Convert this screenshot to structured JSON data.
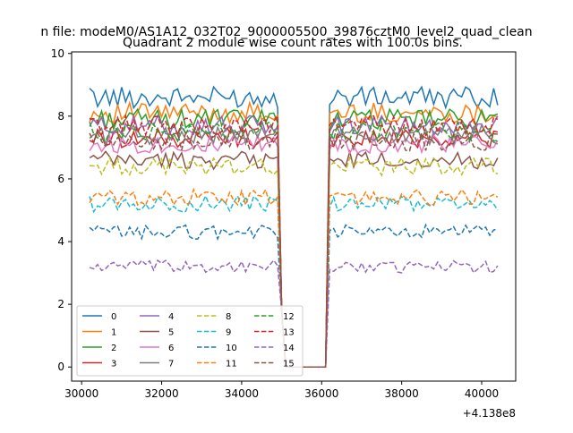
{
  "chart_data": {
    "type": "line",
    "suptitle": "n file: modeM0/AS1A12_032T02_9000005500_39876cztM0_level2_quad_clean",
    "title": "Quadrant 2 module wise count rates with 100.0s bins.",
    "xlabel": "",
    "ylabel": "",
    "offset_label": "+4.138e8",
    "xlim": [
      29750,
      40850
    ],
    "ylim": [
      -0.45,
      10.05
    ],
    "x_ticks": [
      30000,
      32000,
      34000,
      36000,
      38000,
      40000
    ],
    "x_tick_labels": [
      "30000",
      "32000",
      "34000",
      "36000",
      "38000",
      "40000"
    ],
    "y_ticks": [
      0,
      2,
      4,
      6,
      8,
      10
    ],
    "y_tick_labels": [
      "0",
      "2",
      "4",
      "6",
      "8",
      "10"
    ],
    "legend_position": "lower-left",
    "x_start": 30200,
    "x_step": 100,
    "segments": [
      {
        "from": 30200,
        "to": 34900,
        "phase": "high"
      },
      {
        "from": 35000,
        "to": 35000,
        "value": 1.8
      },
      {
        "from": 35100,
        "to": 36100,
        "value": 0
      },
      {
        "from": 36200,
        "to": 40400,
        "phase": "high"
      }
    ],
    "series": [
      {
        "name": "0",
        "color": "#1f77b4",
        "dash": "solid",
        "level": 8.6
      },
      {
        "name": "1",
        "color": "#ff7f0e",
        "dash": "solid",
        "level": 8.1
      },
      {
        "name": "2",
        "color": "#2ca02c",
        "dash": "solid",
        "level": 7.9
      },
      {
        "name": "3",
        "color": "#d62728",
        "dash": "solid",
        "level": 7.3
      },
      {
        "name": "4",
        "color": "#9467bd",
        "dash": "solid",
        "level": 7.7
      },
      {
        "name": "5",
        "color": "#8c564b",
        "dash": "solid",
        "level": 6.6
      },
      {
        "name": "6",
        "color": "#e377c2",
        "dash": "solid",
        "level": 7.1
      },
      {
        "name": "7",
        "color": "#7f7f7f",
        "dash": "solid",
        "level": 7.4
      },
      {
        "name": "8",
        "color": "#bcbd22",
        "dash": "dashed",
        "level": 6.4
      },
      {
        "name": "9",
        "color": "#17becf",
        "dash": "dashed",
        "level": 5.2
      },
      {
        "name": "10",
        "color": "#1f77b4",
        "dash": "dashed",
        "level": 4.3
      },
      {
        "name": "11",
        "color": "#ff7f0e",
        "dash": "dashed",
        "level": 5.4
      },
      {
        "name": "12",
        "color": "#2ca02c",
        "dash": "dashed",
        "level": 7.5
      },
      {
        "name": "13",
        "color": "#d62728",
        "dash": "dashed",
        "level": 7.7
      },
      {
        "name": "14",
        "color": "#9467bd",
        "dash": "dashed",
        "level": 3.2
      },
      {
        "name": "15",
        "color": "#8c564b",
        "dash": "dashed",
        "level": 7.2
      }
    ]
  }
}
